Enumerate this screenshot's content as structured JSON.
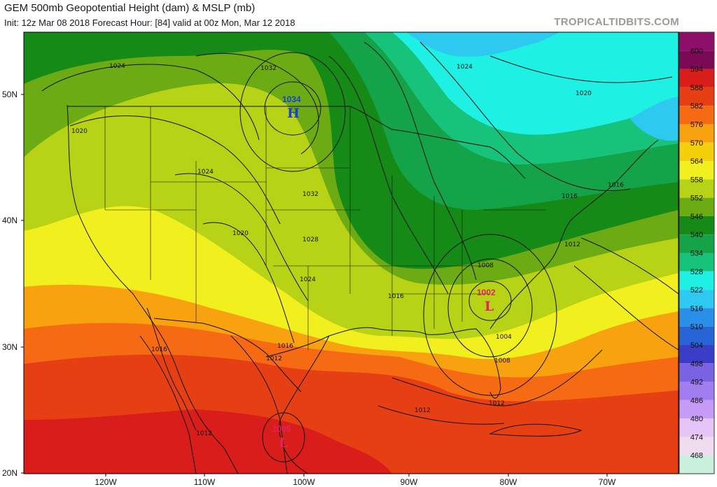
{
  "header": {
    "title": "GEM 500mb Geopotential Height (dam) & MSLP (mb)",
    "subtitle": "Init: 12z Mar 08 2018   Forecast Hour: [84]   valid at 00z Mon, Mar 12 2018",
    "credit": "TROPICALTIDBITS.COM"
  },
  "axes": {
    "latitude_labels": [
      "50N",
      "40N",
      "30N",
      "20N"
    ],
    "longitude_labels": [
      "120W",
      "110W",
      "100W",
      "90W",
      "80W",
      "70W"
    ]
  },
  "colorbar": {
    "levels": [
      "600",
      "594",
      "588",
      "582",
      "576",
      "570",
      "564",
      "558",
      "552",
      "546",
      "540",
      "534",
      "528",
      "522",
      "516",
      "510",
      "504",
      "498",
      "492",
      "486",
      "480",
      "474",
      "468"
    ],
    "colors": [
      "#7a0a55",
      "#d81d1a",
      "#e73f14",
      "#f56a12",
      "#f9a20f",
      "#f6cf0c",
      "#f2ef1e",
      "#b8d315",
      "#6cab13",
      "#168a16",
      "#14a348",
      "#17c27b",
      "#1ff0e4",
      "#2ec9f0",
      "#2a8fe6",
      "#2764d6",
      "#3a3dc8",
      "#7b62e2",
      "#a17df0",
      "#c69bf5",
      "#e6c4f7",
      "#f0dcee",
      "#c9f0dc"
    ]
  },
  "pressure_centers": [
    {
      "type": "H",
      "value": "1034",
      "color": "#1c3fd0"
    },
    {
      "type": "L",
      "value": "1002",
      "color": "#e0245e"
    },
    {
      "type": "L",
      "value": "1005",
      "color": "#e0245e"
    }
  ],
  "isobar_labels": [
    "1024",
    "1032",
    "1020",
    "1024",
    "1032",
    "1028",
    "1020",
    "1024",
    "1016",
    "1024",
    "1016",
    "1020",
    "1012",
    "1012",
    "1008",
    "1016",
    "1016",
    "1016",
    "1012",
    "1004",
    "1008",
    "1012",
    "1012"
  ]
}
